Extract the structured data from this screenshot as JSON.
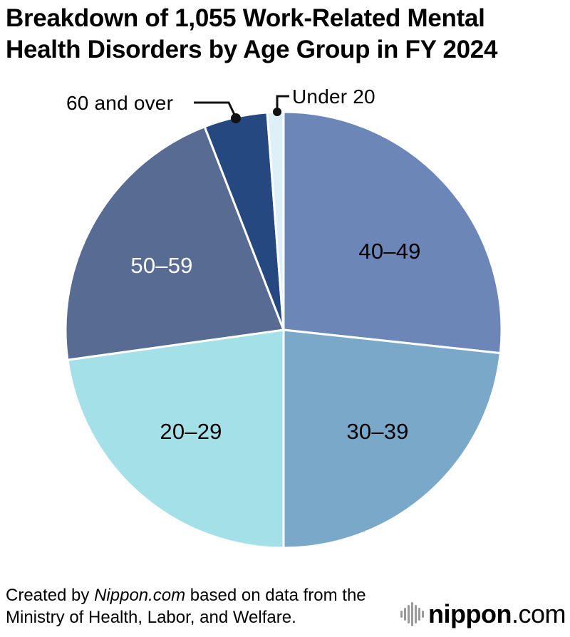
{
  "page": {
    "background": "#ffffff"
  },
  "title": {
    "lines": [
      "Breakdown of 1,055 Work-Related Mental",
      "Health Disorders by Age Group in FY 2024"
    ]
  },
  "chart_data": {
    "type": "pie",
    "title": "Breakdown of 1,055 Work-Related Mental Health Disorders by Age Group in FY 2024",
    "total_shown_in_title": 1055,
    "start_angle_deg": 0,
    "direction": "clockwise",
    "values_are": "percent share estimated from slice angles (no numeric labels shown in chart)",
    "slices": [
      {
        "label": "40–49",
        "pct": 26.7,
        "color": "#6c86b8",
        "label_color": "#000000",
        "label_placement": "inside"
      },
      {
        "label": "30–39",
        "pct": 23.3,
        "color": "#7aa8c8",
        "label_color": "#000000",
        "label_placement": "inside"
      },
      {
        "label": "20–29",
        "pct": 22.8,
        "color": "#a3e0e8",
        "label_color": "#000000",
        "label_placement": "inside"
      },
      {
        "label": "50–59",
        "pct": 21.3,
        "color": "#586b92",
        "label_color": "#ffffff",
        "label_placement": "inside"
      },
      {
        "label": "60 and over",
        "pct": 4.7,
        "color": "#254880",
        "label_color": "#000000",
        "label_placement": "callout"
      },
      {
        "label": "Under 20",
        "pct": 1.2,
        "color": "#ddf0f7",
        "label_color": "#000000",
        "label_placement": "callout"
      }
    ],
    "slice_border_color": "#ffffff",
    "legend": "none"
  },
  "footer": {
    "prefix": "Created by ",
    "source": "Nippon.com",
    "suffix": " based on data from the",
    "line2": "Ministry of Health, Labor, and Welfare."
  },
  "logo": {
    "icon": "soundwave-bars-icon",
    "name": "nippon",
    "dot": ".",
    "tld": "com",
    "colors": {
      "name": "#595959",
      "dot": "#e60012",
      "tld": "#9e9e9e",
      "bars": "#9a9a9a"
    }
  }
}
